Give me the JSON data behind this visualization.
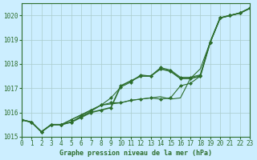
{
  "xlabel": "Graphe pression niveau de la mer (hPa)",
  "background_color": "#cceeff",
  "plot_bg_color": "#cceeff",
  "grid_color": "#aacccc",
  "line_color": "#2d6e2d",
  "ylim": [
    1015.0,
    1020.5
  ],
  "xlim": [
    0,
    23
  ],
  "yticks": [
    1015,
    1016,
    1017,
    1018,
    1019,
    1020
  ],
  "xticks": [
    0,
    1,
    2,
    3,
    4,
    5,
    6,
    7,
    8,
    9,
    10,
    11,
    12,
    13,
    14,
    15,
    16,
    17,
    18,
    19,
    20,
    21,
    22,
    23
  ],
  "series": [
    {
      "values": [
        1015.7,
        1015.6,
        1015.2,
        1015.5,
        1015.5,
        1015.6,
        1015.8,
        1016.0,
        1016.1,
        1016.2,
        1017.1,
        1017.3,
        1017.5,
        1017.5,
        1017.8,
        1017.7,
        1017.4,
        1017.4,
        1017.5,
        1018.9,
        1019.9,
        1020.0,
        1020.1,
        1020.3
      ],
      "linewidth": 1.2,
      "marker": true
    },
    {
      "values": [
        1015.7,
        1015.6,
        1015.2,
        1015.5,
        1015.5,
        1015.6,
        1015.85,
        1016.05,
        1016.3,
        1016.4,
        1016.4,
        1016.5,
        1016.55,
        1016.6,
        1016.55,
        1016.6,
        1017.1,
        1017.2,
        1017.5,
        1018.9,
        1019.9,
        1020.0,
        1020.1,
        1020.3
      ],
      "linewidth": 0.8,
      "marker": true
    },
    {
      "values": [
        1015.7,
        1015.6,
        1015.2,
        1015.5,
        1015.5,
        1015.7,
        1015.9,
        1016.1,
        1016.3,
        1016.35,
        1016.4,
        1016.5,
        1016.55,
        1016.6,
        1016.65,
        1016.55,
        1016.6,
        1017.4,
        1017.8,
        1018.9,
        1019.9,
        1020.0,
        1020.1,
        1020.3
      ],
      "linewidth": 0.8,
      "marker": false
    },
    {
      "values": [
        1015.7,
        1015.6,
        1015.2,
        1015.5,
        1015.5,
        1015.7,
        1015.9,
        1016.1,
        1016.3,
        1016.6,
        1017.05,
        1017.25,
        1017.55,
        1017.5,
        1017.85,
        1017.75,
        1017.45,
        1017.45,
        1017.55,
        1018.9,
        1019.9,
        1020.0,
        1020.1,
        1020.3
      ],
      "linewidth": 0.8,
      "marker": true
    }
  ]
}
